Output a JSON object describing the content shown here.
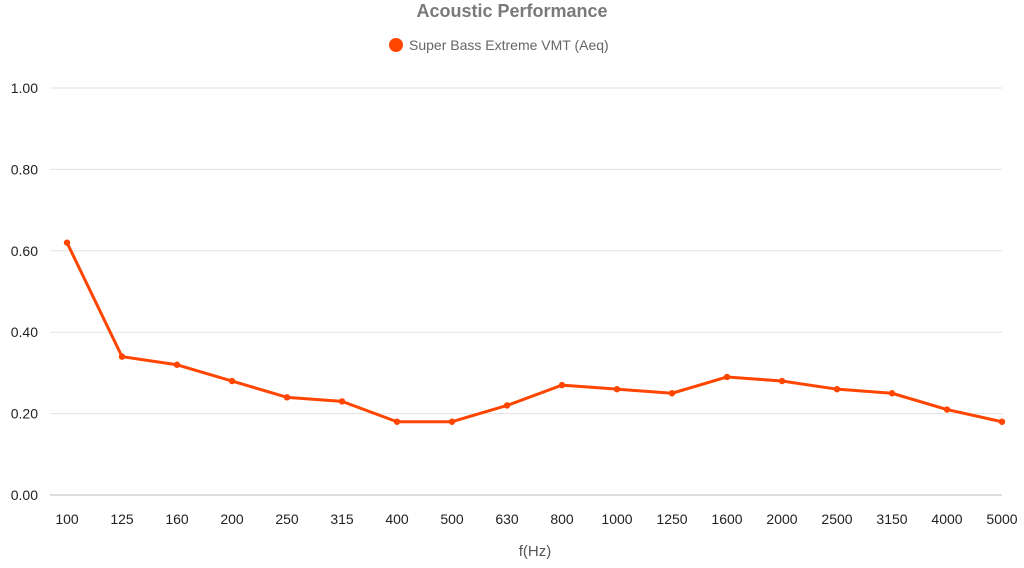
{
  "chart_data": {
    "type": "line",
    "title": "Acoustic Performance",
    "xlabel": "f(Hz)",
    "ylabel": "",
    "categories": [
      "100",
      "125",
      "160",
      "200",
      "250",
      "315",
      "400",
      "500",
      "630",
      "800",
      "1000",
      "1250",
      "1600",
      "2000",
      "2500",
      "3150",
      "4000",
      "5000"
    ],
    "series": [
      {
        "name": "Super Bass Extreme VMT (Aeq)",
        "color": "#ff4500",
        "values": [
          0.62,
          0.34,
          0.32,
          0.28,
          0.24,
          0.23,
          0.18,
          0.18,
          0.22,
          0.27,
          0.26,
          0.25,
          0.29,
          0.28,
          0.26,
          0.25,
          0.21,
          0.18
        ]
      }
    ],
    "ylim": [
      0,
      1
    ],
    "yticks": [
      "0.00",
      "0.20",
      "0.40",
      "0.60",
      "0.80",
      "1.00"
    ],
    "grid": true,
    "legend_position": "top-center"
  }
}
